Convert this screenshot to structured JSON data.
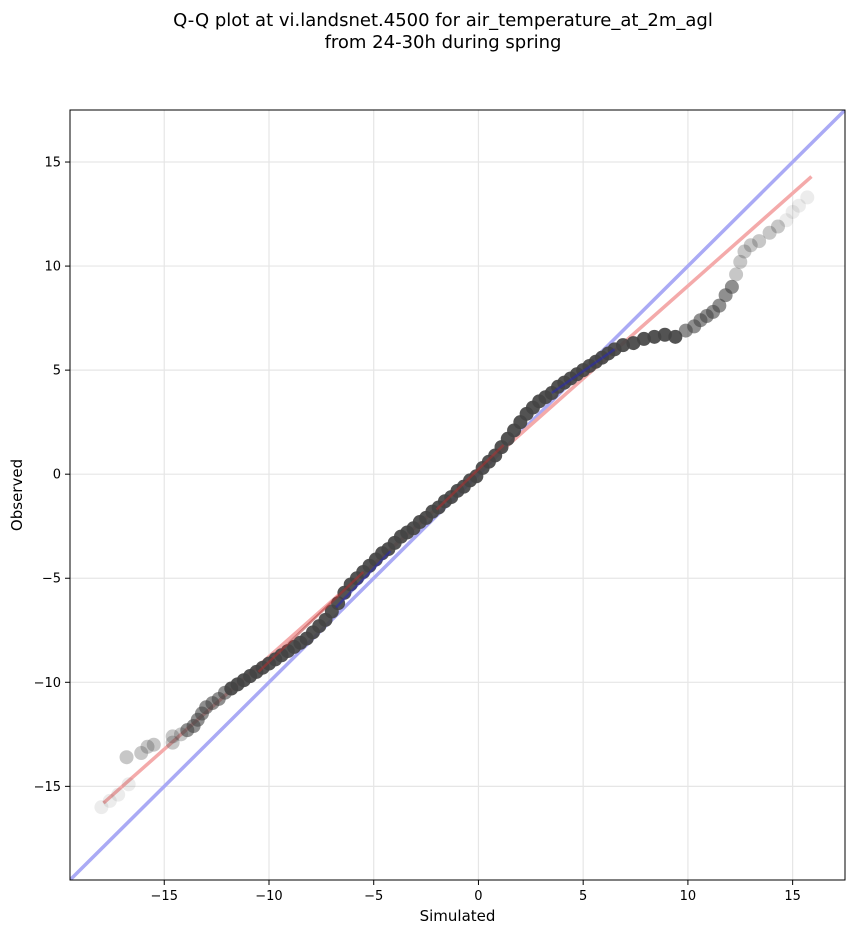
{
  "chart_data": {
    "type": "scatter",
    "title_lines": [
      "Q-Q plot at vi.landsnet.4500 for air_temperature_at_2m_agl",
      "from 24-30h during spring"
    ],
    "xlabel": "Simulated",
    "ylabel": "Observed",
    "xlim": [
      -19.5,
      17.5
    ],
    "ylim": [
      -19.5,
      17.5
    ],
    "xticks": [
      -15,
      -10,
      -5,
      0,
      5,
      10,
      15
    ],
    "yticks": [
      -15,
      -10,
      -5,
      0,
      5,
      10,
      15
    ],
    "xtick_labels": [
      "−15",
      "−10",
      "−5",
      "0",
      "5",
      "10",
      "15"
    ],
    "ytick_labels": [
      "−15",
      "−10",
      "−5",
      "0",
      "5",
      "10",
      "15"
    ],
    "grid": true,
    "colors": {
      "identity_line": "#aaaaf5",
      "fit_line": "#f4aaaa",
      "quantile_point": "#444444",
      "core_highlight_red": "#b03030",
      "core_highlight_blue": "#2828b8"
    },
    "series": [
      {
        "kind": "line",
        "role": "identity",
        "x": [
          -19.5,
          17.5
        ],
        "y": [
          -19.5,
          17.5
        ]
      },
      {
        "kind": "line",
        "role": "fit",
        "x": [
          -17.9,
          15.9
        ],
        "y": [
          -15.8,
          14.3
        ]
      },
      {
        "kind": "scatter",
        "role": "quantiles",
        "points": [
          [
            -18.0,
            -16.0
          ],
          [
            -17.6,
            -15.7
          ],
          [
            -17.2,
            -15.4
          ],
          [
            -16.7,
            -14.9
          ],
          [
            -16.8,
            -13.6
          ],
          [
            -16.1,
            -13.4
          ],
          [
            -15.8,
            -13.1
          ],
          [
            -15.5,
            -13.0
          ],
          [
            -14.6,
            -12.9
          ],
          [
            -14.6,
            -12.6
          ],
          [
            -14.2,
            -12.5
          ],
          [
            -13.9,
            -12.3
          ],
          [
            -13.6,
            -12.1
          ],
          [
            -13.4,
            -11.8
          ],
          [
            -13.2,
            -11.5
          ],
          [
            -13.0,
            -11.2
          ],
          [
            -12.7,
            -11.0
          ],
          [
            -12.4,
            -10.8
          ],
          [
            -12.1,
            -10.5
          ],
          [
            -11.8,
            -10.3
          ],
          [
            -11.5,
            -10.1
          ],
          [
            -11.2,
            -9.9
          ],
          [
            -10.9,
            -9.7
          ],
          [
            -10.6,
            -9.5
          ],
          [
            -10.3,
            -9.3
          ],
          [
            -10.0,
            -9.1
          ],
          [
            -9.7,
            -8.9
          ],
          [
            -9.4,
            -8.7
          ],
          [
            -9.1,
            -8.5
          ],
          [
            -8.8,
            -8.3
          ],
          [
            -8.5,
            -8.1
          ],
          [
            -8.2,
            -7.9
          ],
          [
            -7.9,
            -7.6
          ],
          [
            -7.6,
            -7.3
          ],
          [
            -7.3,
            -7.0
          ],
          [
            -7.0,
            -6.6
          ],
          [
            -6.7,
            -6.2
          ],
          [
            -6.4,
            -5.7
          ],
          [
            -6.1,
            -5.3
          ],
          [
            -5.8,
            -5.0
          ],
          [
            -5.5,
            -4.7
          ],
          [
            -5.2,
            -4.4
          ],
          [
            -4.9,
            -4.1
          ],
          [
            -4.6,
            -3.8
          ],
          [
            -4.3,
            -3.6
          ],
          [
            -4.0,
            -3.3
          ],
          [
            -3.7,
            -3.0
          ],
          [
            -3.4,
            -2.8
          ],
          [
            -3.1,
            -2.6
          ],
          [
            -2.8,
            -2.3
          ],
          [
            -2.5,
            -2.1
          ],
          [
            -2.2,
            -1.8
          ],
          [
            -1.9,
            -1.6
          ],
          [
            -1.6,
            -1.3
          ],
          [
            -1.3,
            -1.1
          ],
          [
            -1.0,
            -0.8
          ],
          [
            -0.7,
            -0.6
          ],
          [
            -0.4,
            -0.3
          ],
          [
            -0.1,
            -0.1
          ],
          [
            0.2,
            0.3
          ],
          [
            0.5,
            0.6
          ],
          [
            0.8,
            0.9
          ],
          [
            1.1,
            1.3
          ],
          [
            1.4,
            1.7
          ],
          [
            1.7,
            2.1
          ],
          [
            2.0,
            2.5
          ],
          [
            2.3,
            2.9
          ],
          [
            2.6,
            3.2
          ],
          [
            2.9,
            3.5
          ],
          [
            3.2,
            3.7
          ],
          [
            3.5,
            3.9
          ],
          [
            3.8,
            4.2
          ],
          [
            4.1,
            4.4
          ],
          [
            4.4,
            4.6
          ],
          [
            4.7,
            4.8
          ],
          [
            5.0,
            5.0
          ],
          [
            5.3,
            5.2
          ],
          [
            5.6,
            5.4
          ],
          [
            5.9,
            5.6
          ],
          [
            6.2,
            5.8
          ],
          [
            6.5,
            6.0
          ],
          [
            6.9,
            6.2
          ],
          [
            7.4,
            6.3
          ],
          [
            7.9,
            6.5
          ],
          [
            8.4,
            6.6
          ],
          [
            8.9,
            6.7
          ],
          [
            9.4,
            6.6
          ],
          [
            9.9,
            6.9
          ],
          [
            10.3,
            7.1
          ],
          [
            10.6,
            7.4
          ],
          [
            10.9,
            7.6
          ],
          [
            11.2,
            7.8
          ],
          [
            11.5,
            8.1
          ],
          [
            11.8,
            8.6
          ],
          [
            12.1,
            9.0
          ],
          [
            12.3,
            9.6
          ],
          [
            12.5,
            10.2
          ],
          [
            12.7,
            10.7
          ],
          [
            13.0,
            11.0
          ],
          [
            13.4,
            11.2
          ],
          [
            13.9,
            11.6
          ],
          [
            14.3,
            11.9
          ],
          [
            14.7,
            12.2
          ],
          [
            15.0,
            12.6
          ],
          [
            15.3,
            12.9
          ],
          [
            15.7,
            13.3
          ]
        ]
      }
    ]
  }
}
